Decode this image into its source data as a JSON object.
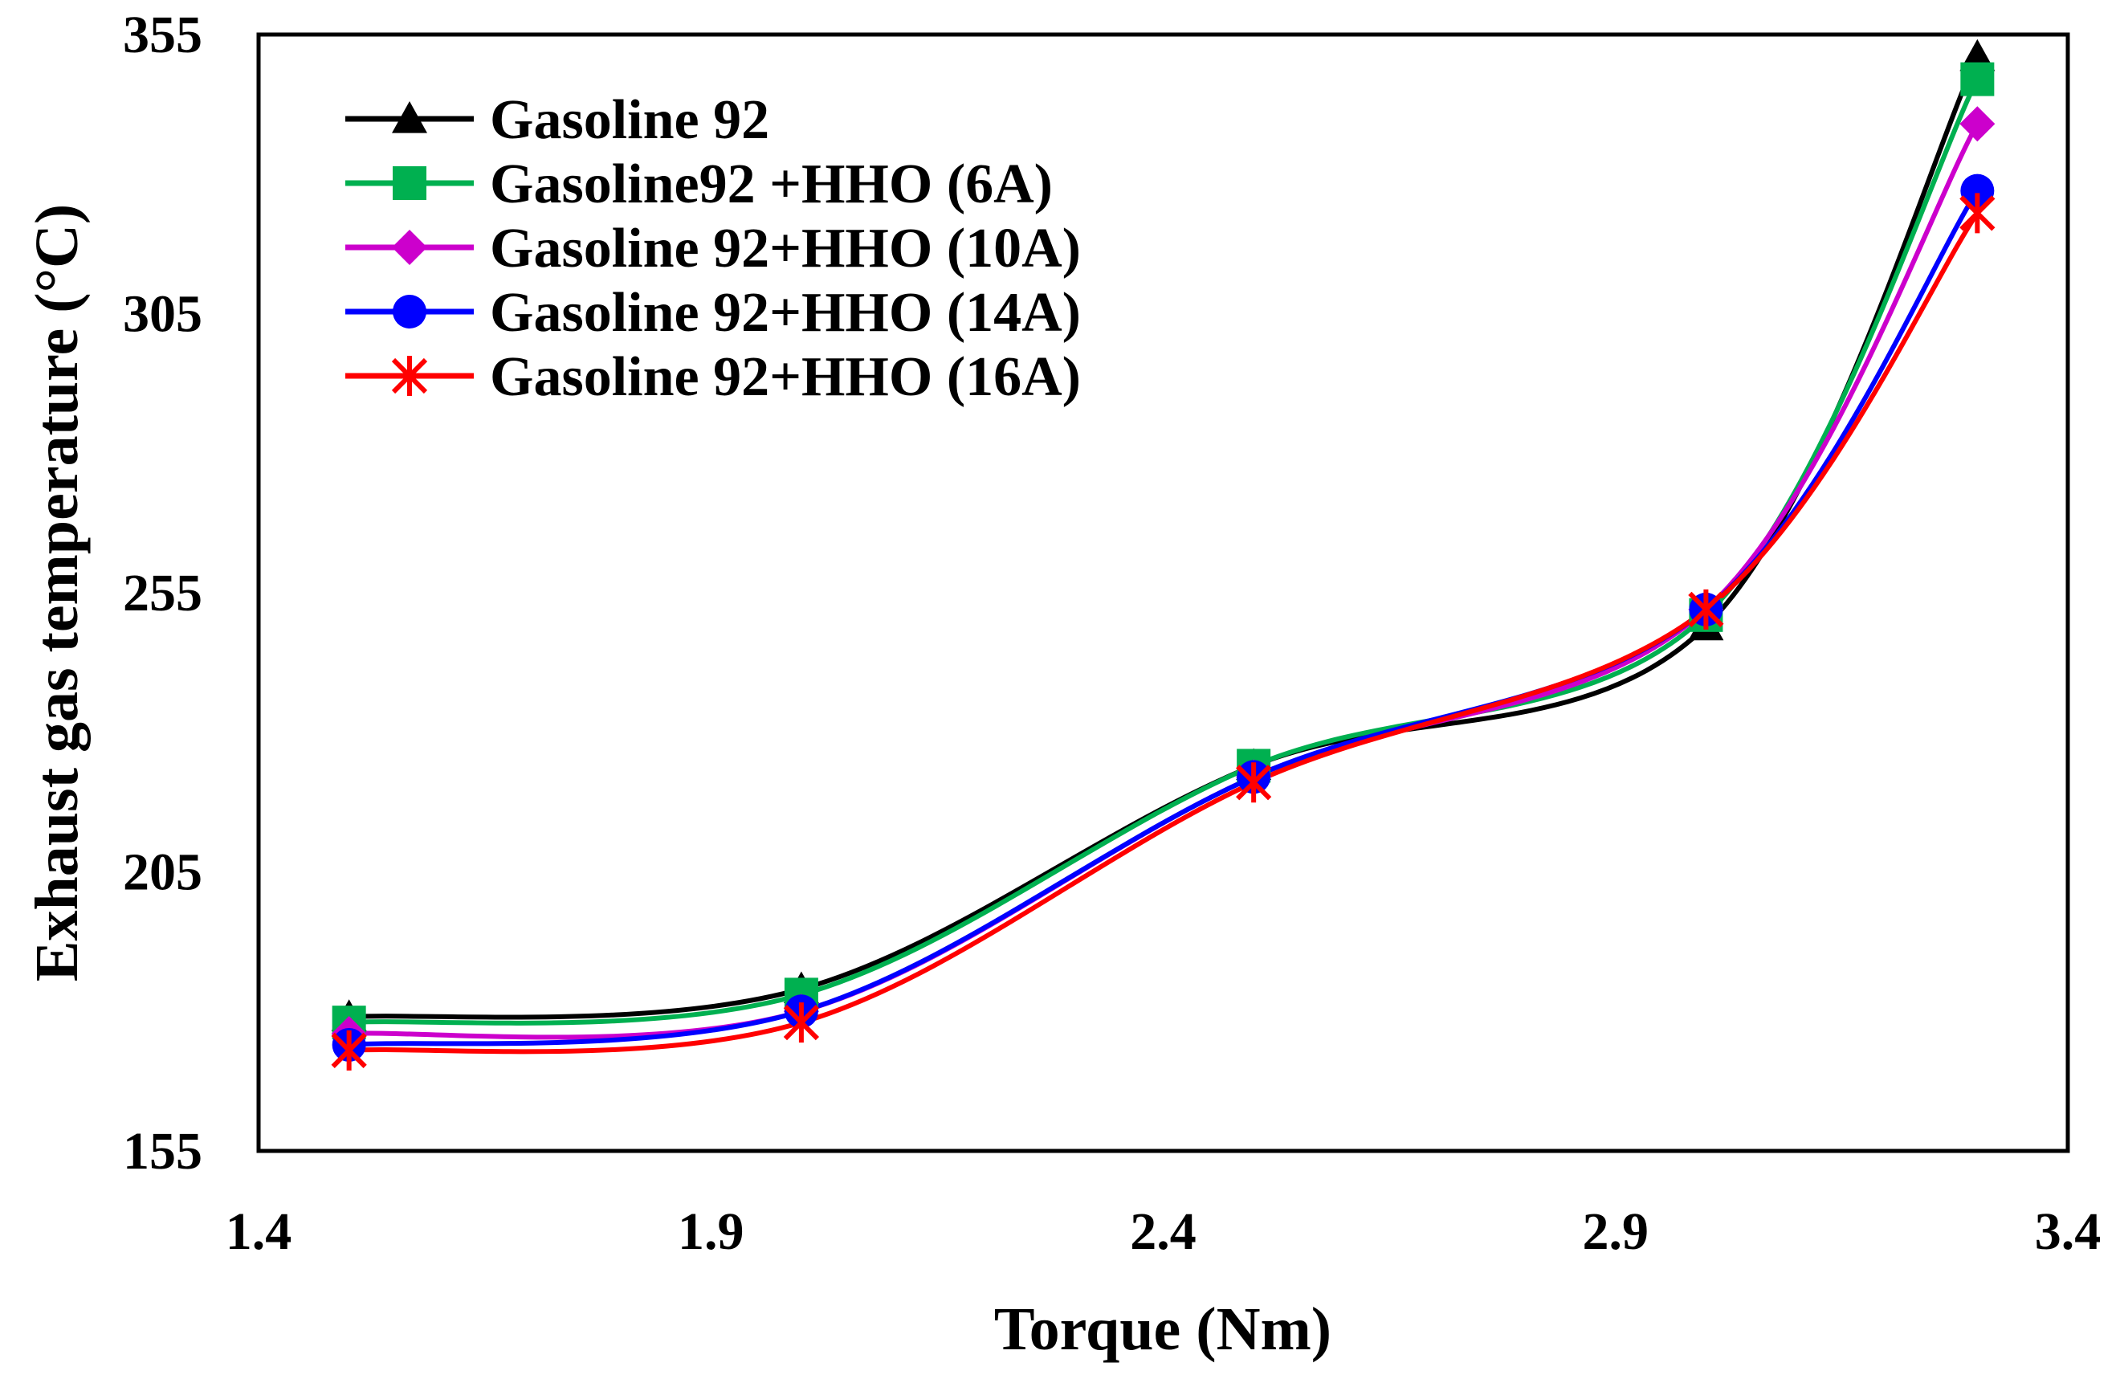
{
  "chart_data": {
    "type": "line",
    "title": "",
    "xlabel": "Torque (Nm)",
    "ylabel": "Exhaust gas temperature (°C)",
    "xlim": [
      1.4,
      3.4
    ],
    "ylim": [
      155,
      355
    ],
    "xticks": [
      1.4,
      1.9,
      2.4,
      2.9,
      3.4
    ],
    "yticks": [
      155,
      205,
      255,
      305,
      355
    ],
    "xtick_labels": [
      "1.4",
      "1.9",
      "2.4",
      "2.9",
      "3.4"
    ],
    "ytick_labels": [
      "155",
      "205",
      "255",
      "305",
      "355"
    ],
    "grid": false,
    "legend_position": "top-left",
    "x": [
      1.5,
      2.0,
      2.5,
      3.0,
      3.3
    ],
    "series": [
      {
        "name": "Gasoline 92",
        "color": "#000000",
        "marker": "triangle",
        "values": [
          179,
          184,
          224,
          249,
          351
        ]
      },
      {
        "name": "Gasoline92 +HHO (6A)",
        "color": "#00b050",
        "marker": "square",
        "values": [
          178,
          183,
          224,
          251,
          347
        ]
      },
      {
        "name": "Gasoline 92+HHO (10A)",
        "color": "#cc00cc",
        "marker": "diamond",
        "values": [
          176,
          180,
          222,
          252,
          339
        ]
      },
      {
        "name": "Gasoline 92+HHO (14A)",
        "color": "#0000ff",
        "marker": "circle",
        "values": [
          174,
          180,
          222,
          252,
          327
        ]
      },
      {
        "name": "Gasoline 92+HHO (16A)",
        "color": "#ff0000",
        "marker": "asterisk",
        "values": [
          173,
          178,
          221,
          252,
          323
        ]
      }
    ]
  }
}
